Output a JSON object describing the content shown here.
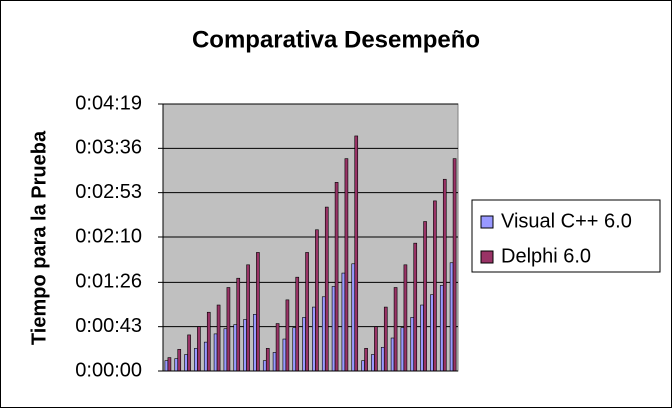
{
  "chart_data": {
    "type": "bar",
    "title": "Comparativa Desempeño",
    "y_label": "Tiempo para la Prueba",
    "categories": [
      null,
      null,
      null,
      null,
      null,
      null,
      null,
      null,
      null,
      null,
      null,
      null,
      null,
      null,
      null,
      null,
      null,
      null,
      null,
      null,
      null,
      null,
      null,
      null,
      null,
      null,
      null,
      null,
      null,
      null
    ],
    "series": [
      {
        "name": "Visual C++ 6.0",
        "color": "#9999ff",
        "values": [
          10,
          12,
          16,
          22,
          28,
          36,
          41,
          45,
          50,
          55,
          10,
          18,
          31,
          42,
          52,
          62,
          72,
          82,
          95,
          104,
          10,
          16,
          23,
          32,
          42,
          52,
          64,
          74,
          83,
          105
        ]
      },
      {
        "name": "Delphi 6.0",
        "color": "#993366",
        "values": [
          13,
          21,
          35,
          43,
          57,
          64,
          81,
          90,
          103,
          115,
          22,
          46,
          69,
          91,
          115,
          137,
          159,
          183,
          206,
          228,
          22,
          43,
          62,
          81,
          103,
          124,
          145,
          165,
          186,
          206
        ]
      }
    ],
    "ylim": [
      0,
      259
    ],
    "yticks": [
      {
        "value": 0,
        "label": "0:00:00"
      },
      {
        "value": 43,
        "label": "0:00:43"
      },
      {
        "value": 86,
        "label": "0:01:26"
      },
      {
        "value": 130,
        "label": "0:02:10"
      },
      {
        "value": 173,
        "label": "0:02:53"
      },
      {
        "value": 216,
        "label": "0:03:36"
      },
      {
        "value": 259,
        "label": "0:04:19"
      }
    ],
    "grid": true,
    "legend": "right"
  }
}
